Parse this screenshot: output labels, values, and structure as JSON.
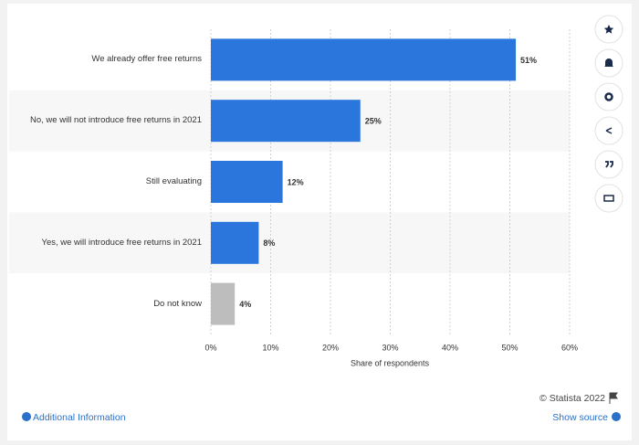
{
  "chart_data": {
    "type": "bar",
    "orientation": "horizontal",
    "categories": [
      "We already offer free returns",
      "No, we will not introduce free returns in 2021",
      "Still evaluating",
      "Yes, we will introduce free returns in 2021",
      "Do not know"
    ],
    "values": [
      51,
      25,
      12,
      8,
      4
    ],
    "value_labels": [
      "51%",
      "25%",
      "12%",
      "8%",
      "4%"
    ],
    "colors": [
      "#2a76dd",
      "#2a76dd",
      "#2a76dd",
      "#2a76dd",
      "#bdbdbd"
    ],
    "xlabel": "Share of respondents",
    "xlim": [
      0,
      60
    ],
    "xticks": [
      {
        "value": 0,
        "label": "0%"
      },
      {
        "value": 10,
        "label": "10%"
      },
      {
        "value": 20,
        "label": "20%"
      },
      {
        "value": 30,
        "label": "30%"
      },
      {
        "value": 40,
        "label": "40%"
      },
      {
        "value": 50,
        "label": "50%"
      },
      {
        "value": 60,
        "label": "60%"
      }
    ],
    "grid": true
  },
  "footer": {
    "copyright": "© Statista 2022",
    "additional_information": "Additional Information",
    "show_source": "Show source"
  }
}
